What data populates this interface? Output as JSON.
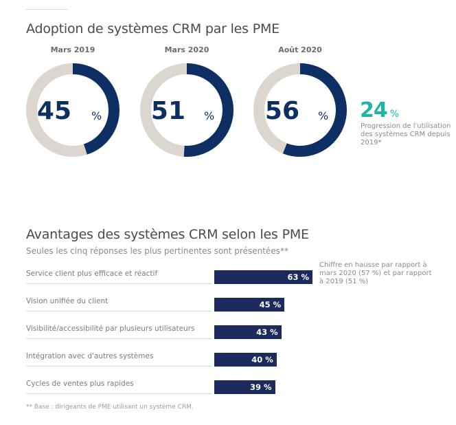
{
  "section1": {
    "title": "Adoption de systèmes CRM par les PME",
    "donuts": [
      {
        "label": "Mars 2019",
        "value": 45,
        "value_text": "45",
        "pct_sign": "%"
      },
      {
        "label": "Mars 2020",
        "value": 51,
        "value_text": "51",
        "pct_sign": "%"
      },
      {
        "label": "Août 2020",
        "value": 56,
        "value_text": "56",
        "pct_sign": "%"
      }
    ],
    "highlight": {
      "value": "24",
      "pct_sign": "%",
      "description": "Progression de l'utilisation des systèmes CRM depuis 2019*"
    }
  },
  "section2": {
    "title": "Avantages des systèmes CRM selon les PME",
    "subtitle": "Seules les cinq réponses les plus pertinentes sont présentées**",
    "note": "Chiffre en hausse par rapport à mars 2020 (57 %) et par rapport à 2019 (51 %)",
    "footnote": "** Base : dirigeants de PME utilisant un système CRM."
  },
  "colors": {
    "donut_fill": "#0d2f63",
    "donut_track": "#ddd6ce",
    "bar": "#1c2a5e",
    "accent": "#1fb4a5"
  },
  "chart_data": [
    {
      "type": "pie",
      "title": "Adoption de systèmes CRM par les PME",
      "categories": [
        "Mars 2019",
        "Mars 2020",
        "Août 2020"
      ],
      "values": [
        45,
        51,
        56
      ],
      "unit": "%"
    },
    {
      "type": "bar",
      "title": "Avantages des systèmes CRM selon les PME",
      "subtitle": "Seules les cinq réponses les plus pertinentes sont présentées**",
      "categories": [
        "Service client plus efficace et réactif",
        "Vision unifiée du client",
        "Visibilité/accessibilité par plusieurs utilisateurs",
        "Intégration avec d'autres systèmes",
        "Cycles de ventes plus rapides"
      ],
      "values": [
        63,
        45,
        43,
        40,
        39
      ],
      "value_labels": [
        "63 %",
        "45 %",
        "43 %",
        "40 %",
        "39 %"
      ],
      "orientation": "horizontal",
      "xlim": [
        0,
        63
      ]
    }
  ]
}
